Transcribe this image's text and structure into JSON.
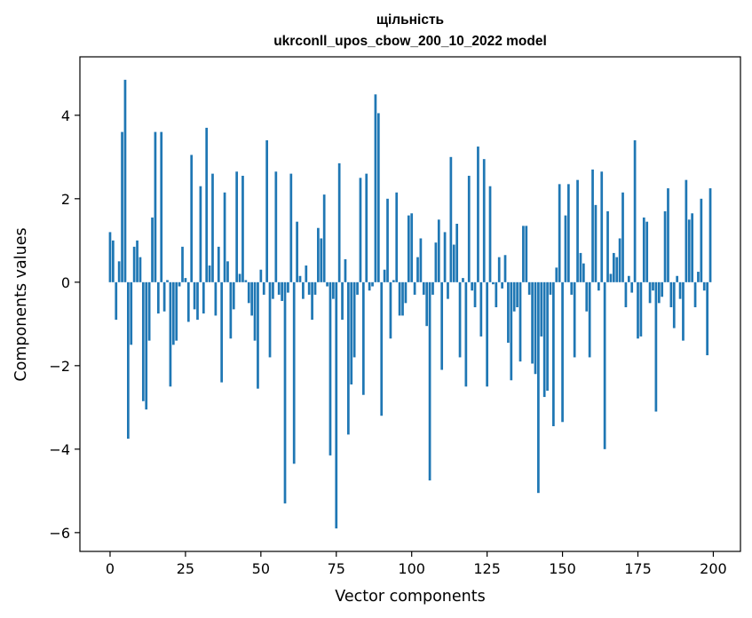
{
  "chart_data": {
    "type": "bar",
    "title": "щільність",
    "subtitle": "ukrconll_upos_cbow_200_10_2022 model",
    "xlabel": "Vector components",
    "ylabel": "Components values",
    "xlim": [
      -10,
      209
    ],
    "ylim": [
      -6.45,
      5.4
    ],
    "xticks": [
      0,
      25,
      50,
      75,
      100,
      125,
      150,
      175,
      200
    ],
    "xtick_labels": [
      "0",
      "25",
      "50",
      "75",
      "100",
      "125",
      "150",
      "175",
      "200"
    ],
    "yticks": [
      -6,
      -4,
      -2,
      0,
      2,
      4
    ],
    "ytick_labels": [
      "−6",
      "−4",
      "−2",
      "0",
      "2",
      "4"
    ],
    "grid": false,
    "legend": "none",
    "bar_color": "#1f77b4",
    "x": [
      0,
      1,
      2,
      3,
      4,
      5,
      6,
      7,
      8,
      9,
      10,
      11,
      12,
      13,
      14,
      15,
      16,
      17,
      18,
      19,
      20,
      21,
      22,
      23,
      24,
      25,
      26,
      27,
      28,
      29,
      30,
      31,
      32,
      33,
      34,
      35,
      36,
      37,
      38,
      39,
      40,
      41,
      42,
      43,
      44,
      45,
      46,
      47,
      48,
      49,
      50,
      51,
      52,
      53,
      54,
      55,
      56,
      57,
      58,
      59,
      60,
      61,
      62,
      63,
      64,
      65,
      66,
      67,
      68,
      69,
      70,
      71,
      72,
      73,
      74,
      75,
      76,
      77,
      78,
      79,
      80,
      81,
      82,
      83,
      84,
      85,
      86,
      87,
      88,
      89,
      90,
      91,
      92,
      93,
      94,
      95,
      96,
      97,
      98,
      99,
      100,
      101,
      102,
      103,
      104,
      105,
      106,
      107,
      108,
      109,
      110,
      111,
      112,
      113,
      114,
      115,
      116,
      117,
      118,
      119,
      120,
      121,
      122,
      123,
      124,
      125,
      126,
      127,
      128,
      129,
      130,
      131,
      132,
      133,
      134,
      135,
      136,
      137,
      138,
      139,
      140,
      141,
      142,
      143,
      144,
      145,
      146,
      147,
      148,
      149,
      150,
      151,
      152,
      153,
      154,
      155,
      156,
      157,
      158,
      159,
      160,
      161,
      162,
      163,
      164,
      165,
      166,
      167,
      168,
      169,
      170,
      171,
      172,
      173,
      174,
      175,
      176,
      177,
      178,
      179,
      180,
      181,
      182,
      183,
      184,
      185,
      186,
      187,
      188,
      189,
      190,
      191,
      192,
      193,
      194,
      195,
      196,
      197,
      198,
      199
    ],
    "values": [
      1.2,
      1.0,
      -0.9,
      0.5,
      3.6,
      4.85,
      -3.75,
      -1.5,
      0.85,
      1.0,
      0.6,
      -2.85,
      -3.05,
      -1.4,
      1.55,
      3.6,
      -0.75,
      3.6,
      -0.7,
      0.05,
      -2.5,
      -1.5,
      -1.4,
      -0.1,
      0.85,
      0.1,
      -0.95,
      3.05,
      -0.65,
      -0.9,
      2.3,
      -0.75,
      3.7,
      0.4,
      2.6,
      -0.8,
      0.85,
      -2.4,
      2.15,
      0.5,
      -1.35,
      -0.65,
      2.65,
      0.2,
      2.55,
      0.05,
      -0.5,
      -0.8,
      -1.4,
      -2.55,
      0.3,
      -0.3,
      3.4,
      -1.8,
      -0.4,
      2.65,
      -0.3,
      -0.45,
      -5.3,
      -0.25,
      2.6,
      -4.35,
      1.45,
      0.15,
      -0.4,
      0.4,
      -0.3,
      -0.9,
      -0.3,
      1.3,
      1.05,
      2.1,
      -0.1,
      -4.15,
      -0.4,
      -5.9,
      2.85,
      -0.9,
      0.55,
      -3.65,
      -2.45,
      -1.8,
      -0.3,
      2.5,
      -2.7,
      2.6,
      -0.2,
      -0.1,
      4.5,
      4.05,
      -3.2,
      0.3,
      2.0,
      -1.35,
      0.05,
      2.15,
      -0.8,
      -0.8,
      -0.5,
      1.6,
      1.65,
      -0.3,
      0.6,
      1.05,
      -0.3,
      -1.05,
      -4.75,
      -0.3,
      0.95,
      1.5,
      -2.1,
      1.2,
      -0.4,
      3.0,
      0.9,
      1.4,
      -1.8,
      0.1,
      -2.5,
      2.55,
      -0.2,
      -0.6,
      3.25,
      -1.3,
      2.95,
      -2.5,
      2.3,
      -0.05,
      -0.6,
      0.6,
      -0.15,
      0.65,
      -1.45,
      -2.35,
      -0.7,
      -0.6,
      -1.9,
      1.35,
      1.35,
      -0.3,
      -1.95,
      -2.2,
      -5.05,
      -1.3,
      -2.75,
      -2.6,
      -0.3,
      -3.45,
      0.35,
      2.35,
      -3.35,
      1.6,
      2.35,
      -0.3,
      -1.8,
      2.45,
      0.7,
      0.45,
      -0.7,
      -1.8,
      2.7,
      1.85,
      -0.2,
      2.65,
      -4.0,
      1.7,
      0.2,
      0.7,
      0.6,
      1.05,
      2.15,
      -0.6,
      0.15,
      -0.25,
      3.4,
      -1.35,
      -1.3,
      1.55,
      1.45,
      -0.5,
      -0.2,
      -3.1,
      -0.5,
      -0.35,
      1.7,
      2.25,
      -0.6,
      -1.1,
      0.15,
      -0.4,
      -1.4,
      2.45,
      1.5,
      1.65,
      -0.6,
      0.25,
      2.0,
      -0.2,
      -1.75,
      2.25
    ]
  }
}
